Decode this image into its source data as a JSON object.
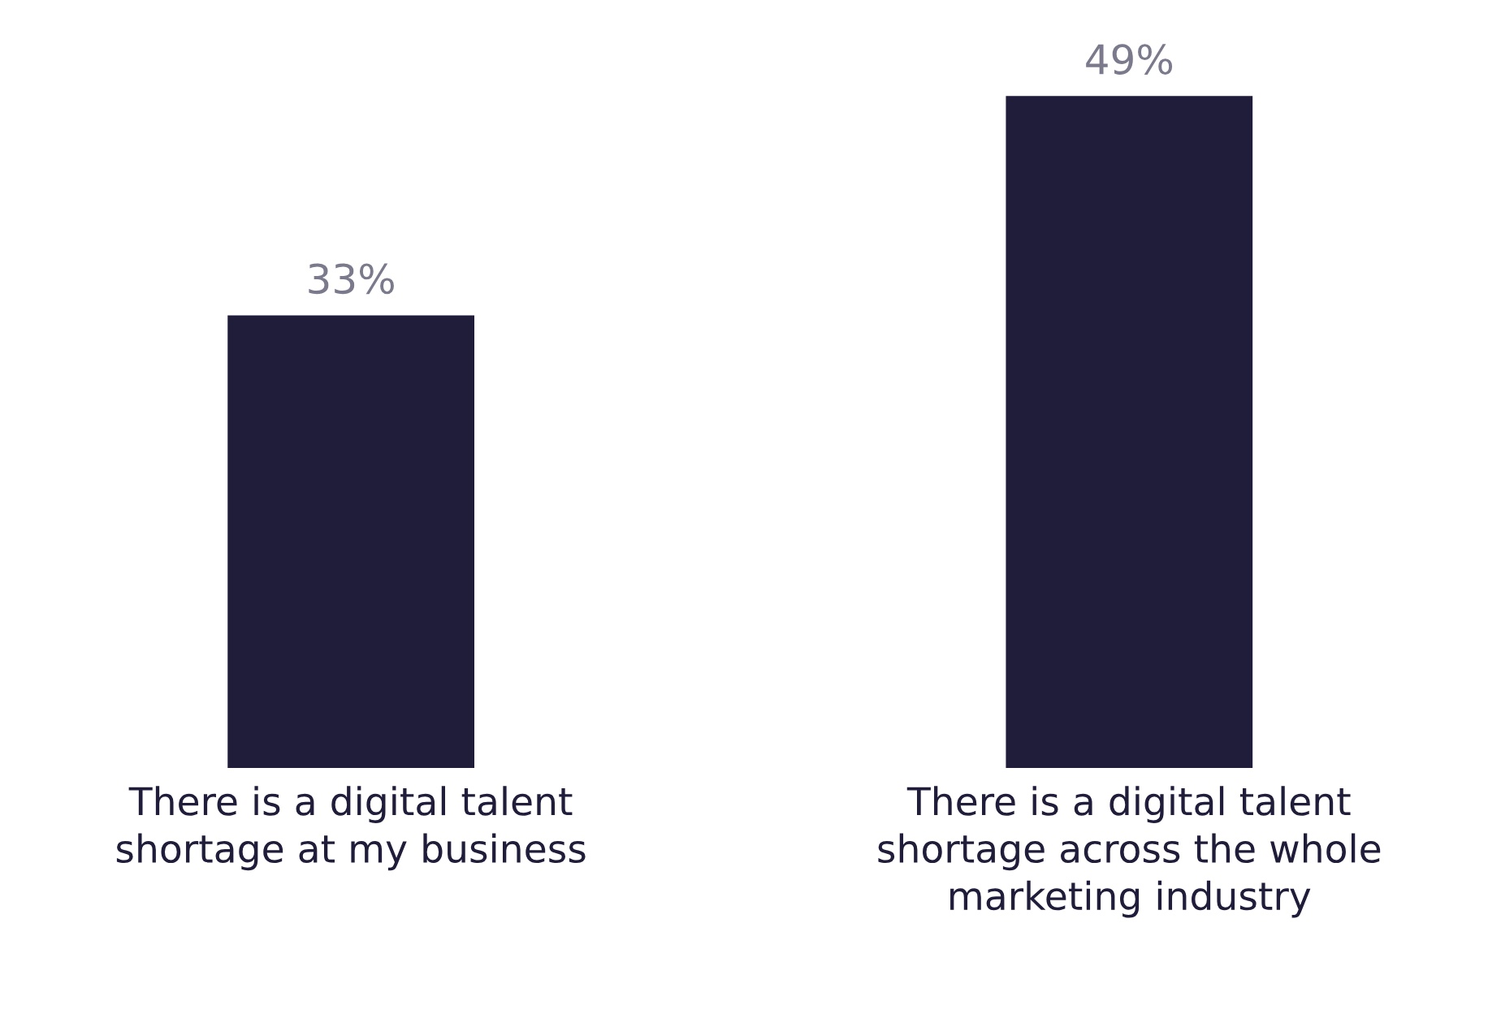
{
  "chart_data": {
    "type": "bar",
    "categories": [
      "There is a digital talent\nshortage at my business",
      "There is a digital talent\nshortage across the whole\nmarketing industry"
    ],
    "values": [
      33,
      49
    ],
    "value_labels": [
      "33%",
      "49%"
    ],
    "color": "#1f1d3a",
    "grid": false,
    "legend": false
  }
}
